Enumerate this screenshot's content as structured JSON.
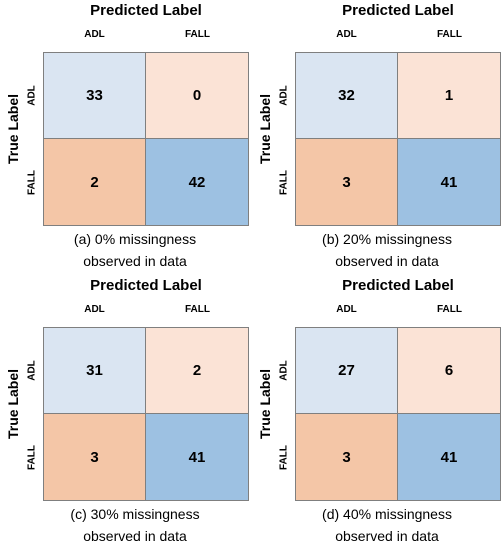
{
  "colors": {
    "tn": "#dae5f2",
    "fp": "#fbe3d6",
    "fn": "#f4c6a7",
    "tp": "#9dc1e2"
  },
  "chart_data": [
    {
      "type": "heatmap",
      "title": "Predicted Label",
      "ylabel": "True Label",
      "x_categories": [
        "ADL",
        "FALL"
      ],
      "y_categories": [
        "ADL",
        "FALL"
      ],
      "values": [
        [
          33,
          0
        ],
        [
          2,
          42
        ]
      ],
      "caption": "(a)  0% missingness\nobserved in data"
    },
    {
      "type": "heatmap",
      "title": "Predicted Label",
      "ylabel": "True Label",
      "x_categories": [
        "ADL",
        "FALL"
      ],
      "y_categories": [
        "ADL",
        "FALL"
      ],
      "values": [
        [
          32,
          1
        ],
        [
          3,
          41
        ]
      ],
      "caption": "(b)  20% missingness\nobserved in data"
    },
    {
      "type": "heatmap",
      "title": "Predicted Label",
      "ylabel": "True Label",
      "x_categories": [
        "ADL",
        "FALL"
      ],
      "y_categories": [
        "ADL",
        "FALL"
      ],
      "values": [
        [
          31,
          2
        ],
        [
          3,
          41
        ]
      ],
      "caption": "(c)  30% missingness\nobserved in data"
    },
    {
      "type": "heatmap",
      "title": "Predicted Label",
      "ylabel": "True Label",
      "x_categories": [
        "ADL",
        "FALL"
      ],
      "y_categories": [
        "ADL",
        "FALL"
      ],
      "values": [
        [
          27,
          6
        ],
        [
          3,
          41
        ]
      ],
      "caption": "(d)  40% missingness\nobserved in data"
    }
  ]
}
